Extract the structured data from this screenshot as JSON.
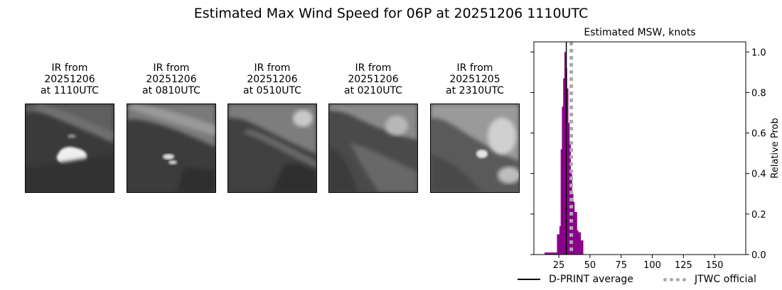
{
  "title": "Estimated Max Wind Speed for 06P at 20251206 1110UTC",
  "ir_panels": [
    {
      "line1": "IR from",
      "line2": "20251206",
      "line3": "at 1110UTC"
    },
    {
      "line1": "IR from",
      "line2": "20251206",
      "line3": "at 0810UTC"
    },
    {
      "line1": "IR from",
      "line2": "20251206",
      "line3": "at 0510UTC"
    },
    {
      "line1": "IR from",
      "line2": "20251206",
      "line3": "at 0210UTC"
    },
    {
      "line1": "IR from",
      "line2": "20251205",
      "line3": "at 2310UTC"
    }
  ],
  "chart_data": {
    "type": "bar",
    "title": "Estimated MSW, knots",
    "xlabel": "",
    "ylabel": "Relative Prob",
    "xlim": [
      5,
      175
    ],
    "ylim": [
      0,
      1.05
    ],
    "xticks": [
      25,
      50,
      75,
      100,
      125,
      150
    ],
    "yticks": [
      0.0,
      0.2,
      0.4,
      0.6,
      0.8,
      1.0
    ],
    "bar_width": 1,
    "bar_color": "#8b008b",
    "bars": [
      {
        "x": 14,
        "y": 0.01
      },
      {
        "x": 15,
        "y": 0.01
      },
      {
        "x": 16,
        "y": 0.01
      },
      {
        "x": 17,
        "y": 0.01
      },
      {
        "x": 18,
        "y": 0.01
      },
      {
        "x": 19,
        "y": 0.01
      },
      {
        "x": 20,
        "y": 0.01
      },
      {
        "x": 21,
        "y": 0.01
      },
      {
        "x": 22,
        "y": 0.01
      },
      {
        "x": 23,
        "y": 0.01
      },
      {
        "x": 24,
        "y": 0.1
      },
      {
        "x": 25,
        "y": 0.1
      },
      {
        "x": 26,
        "y": 0.14
      },
      {
        "x": 27,
        "y": 0.52
      },
      {
        "x": 28,
        "y": 0.73
      },
      {
        "x": 29,
        "y": 0.87
      },
      {
        "x": 30,
        "y": 1.0
      },
      {
        "x": 31,
        "y": 0.92
      },
      {
        "x": 32,
        "y": 0.82
      },
      {
        "x": 33,
        "y": 0.65
      },
      {
        "x": 34,
        "y": 0.55
      },
      {
        "x": 35,
        "y": 0.4
      },
      {
        "x": 36,
        "y": 0.3
      },
      {
        "x": 37,
        "y": 0.26
      },
      {
        "x": 38,
        "y": 0.21
      },
      {
        "x": 39,
        "y": 0.21
      },
      {
        "x": 40,
        "y": 0.12
      },
      {
        "x": 41,
        "y": 0.11
      },
      {
        "x": 42,
        "y": 0.11
      },
      {
        "x": 43,
        "y": 0.07
      },
      {
        "x": 44,
        "y": 0.07
      }
    ],
    "lines": [
      {
        "name": "D-PRINT average",
        "x": 31,
        "color": "#000000",
        "style": "solid"
      },
      {
        "name": "JTWC official",
        "x": 35,
        "color": "#aaaaaa",
        "style": "dotted"
      }
    ],
    "legend_position": "bottom"
  }
}
